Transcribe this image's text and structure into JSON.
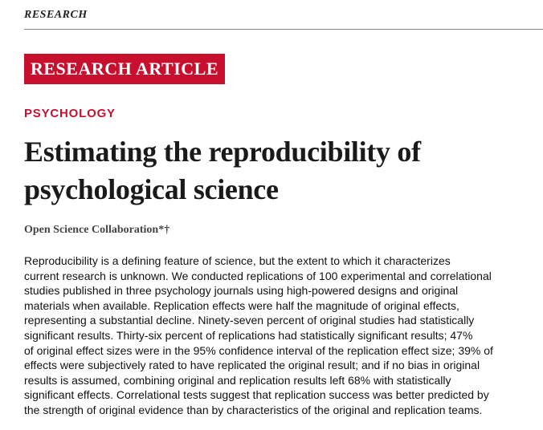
{
  "header": {
    "section": "RESEARCH"
  },
  "badge": "RESEARCH ARTICLE",
  "category": "PSYCHOLOGY",
  "title": [
    "Estimating the reproducibility of",
    "psychological science"
  ],
  "authors": "Open Science Collaboration*†",
  "abstract": [
    "Reproducibility is a defining feature of science, but the extent to which it characterizes",
    "current research is unknown. We conducted replications of 100 experimental and correlational",
    "studies published in three psychology journals using high-powered designs and original",
    "materials when available. Replication effects were half the magnitude of original effects,",
    "representing a substantial decline. Ninety-seven percent of original studies had statistically",
    "significant results. Thirty-six percent of replications had statistically significant results; 47%",
    "of original effect sizes were in the 95% confidence interval of the replication effect size; 39% of",
    "effects were subjectively rated to have replicated the original result; and if no bias in original",
    "results is assumed, combining original and replication results left 68% with statistically",
    "significant effects. Correlational tests suggest that replication success was better predicted by",
    "the strength of original evidence than by characteristics of the original and replication teams."
  ]
}
